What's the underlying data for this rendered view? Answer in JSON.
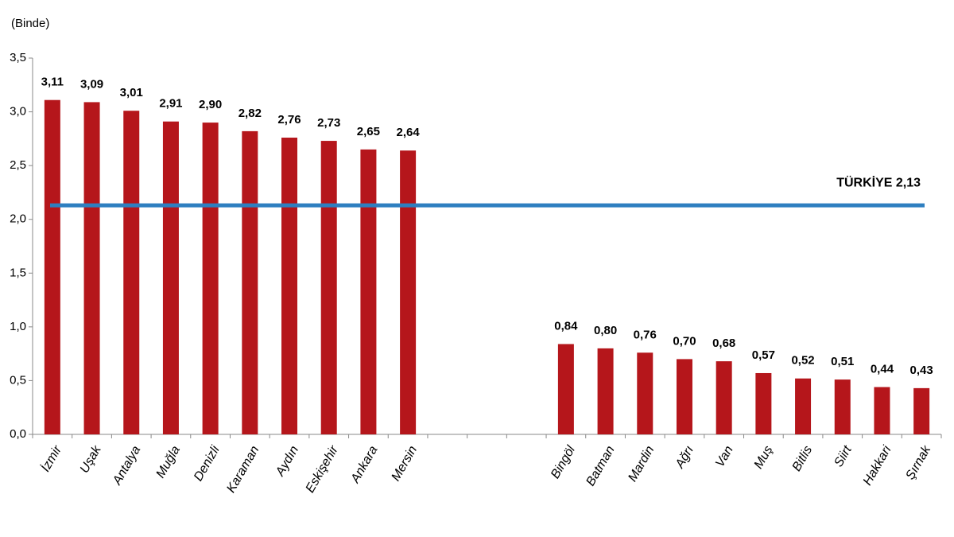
{
  "chart_data": {
    "type": "bar",
    "y_label": "(Binde)",
    "categories": [
      "İzmir",
      "Uşak",
      "Antalya",
      "Muğla",
      "Denizli",
      "Karaman",
      "Aydın",
      "Eskişehir",
      "Ankara",
      "Mersin",
      null,
      null,
      null,
      "Bingöl",
      "Batman",
      "Mardin",
      "Ağrı",
      "Van",
      "Muş",
      "Bitlis",
      "Siirt",
      "Hakkari",
      "Şırnak"
    ],
    "values": [
      3.11,
      3.09,
      3.01,
      2.91,
      2.9,
      2.82,
      2.76,
      2.73,
      2.65,
      2.64,
      null,
      null,
      null,
      0.84,
      0.8,
      0.76,
      0.7,
      0.68,
      0.57,
      0.52,
      0.51,
      0.44,
      0.43
    ],
    "value_labels": [
      "3,11",
      "3,09",
      "3,01",
      "2,91",
      "2,90",
      "2,82",
      "2,76",
      "2,73",
      "2,65",
      "2,64",
      null,
      null,
      null,
      "0,84",
      "0,80",
      "0,76",
      "0,70",
      "0,68",
      "0,57",
      "0,52",
      "0,51",
      "0,44",
      "0,43"
    ],
    "color": "#b5161b",
    "ylim": [
      0,
      3.5
    ],
    "yticks": [
      {
        "value": 0,
        "label": "0,0"
      },
      {
        "value": 0.5,
        "label": "0,5"
      },
      {
        "value": 1,
        "label": "1,0"
      },
      {
        "value": 1.5,
        "label": "1,5"
      },
      {
        "value": 2,
        "label": "2,0"
      },
      {
        "value": 2.5,
        "label": "2,5"
      },
      {
        "value": 3,
        "label": "3,0"
      },
      {
        "value": 3.5,
        "label": "3,5"
      }
    ],
    "reference_line": {
      "value": 2.13,
      "label": "TÜRKİYE 2,13",
      "color": "#2e7fc0"
    }
  }
}
